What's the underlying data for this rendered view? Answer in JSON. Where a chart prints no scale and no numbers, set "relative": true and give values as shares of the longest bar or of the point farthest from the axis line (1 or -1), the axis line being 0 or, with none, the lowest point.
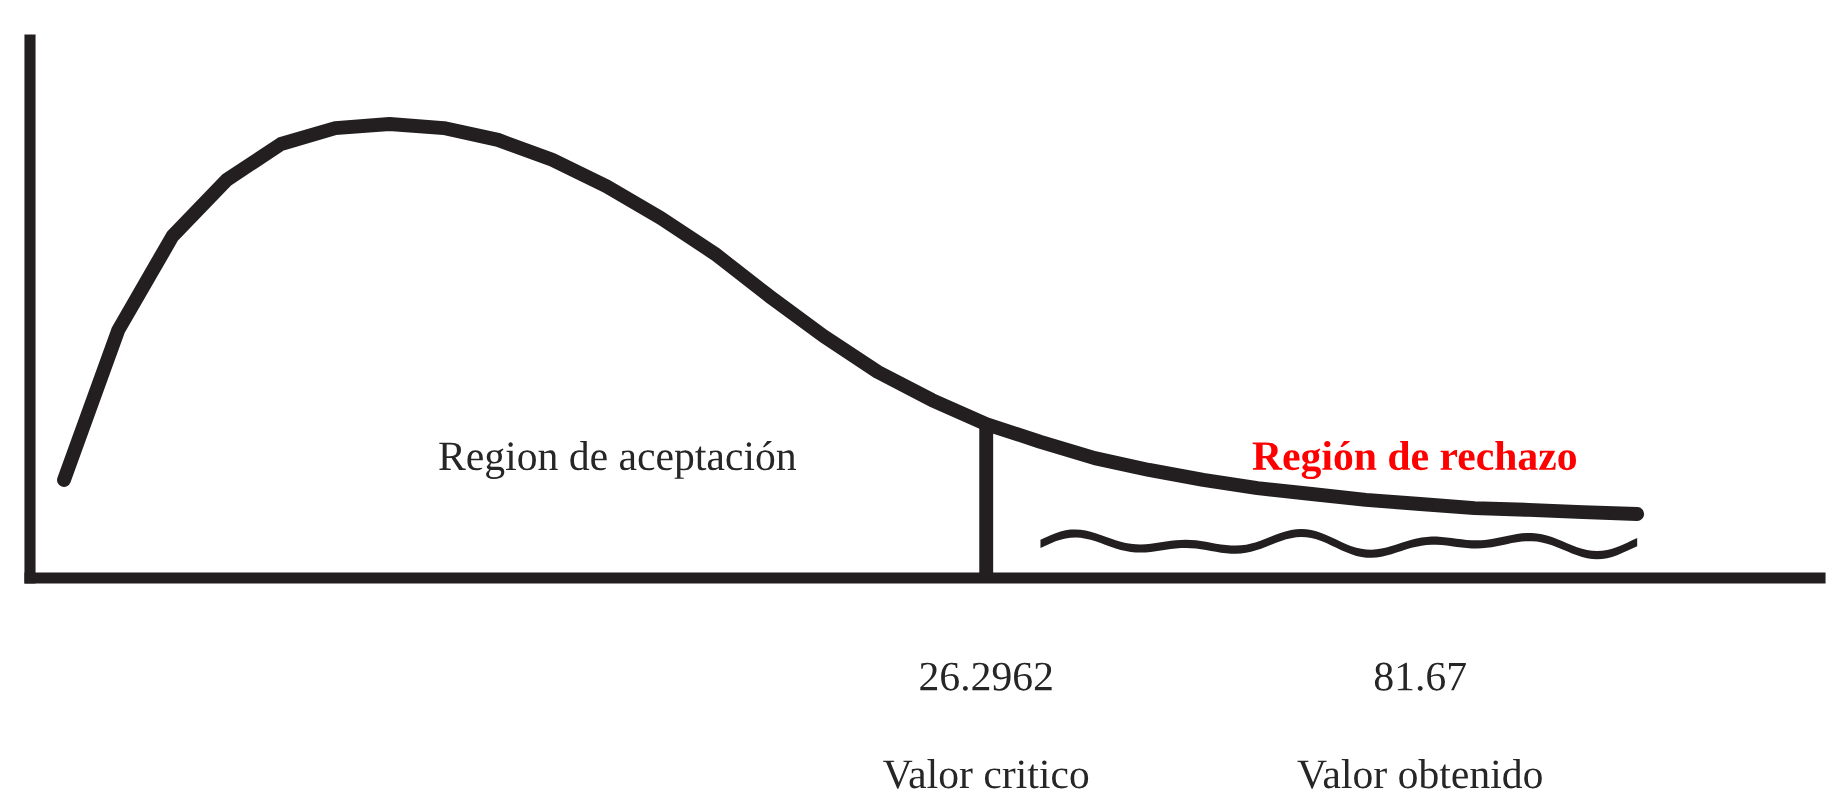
{
  "chart_data": {
    "type": "line",
    "relative": true,
    "color": "#231f20",
    "categories": [
      null,
      null,
      null,
      null,
      null,
      null,
      null,
      null,
      null,
      null,
      null,
      null,
      null,
      null,
      null,
      null,
      null,
      "26.2962",
      null,
      null,
      null,
      null,
      null,
      null,
      null,
      "81.67",
      null,
      null,
      null,
      null
    ],
    "values": [
      0.216,
      0.546,
      0.753,
      0.877,
      0.956,
      0.991,
      1.0,
      0.991,
      0.965,
      0.921,
      0.863,
      0.793,
      0.714,
      0.621,
      0.533,
      0.454,
      0.392,
      0.339,
      0.3,
      0.264,
      0.238,
      0.216,
      0.198,
      0.185,
      0.172,
      0.163,
      0.154,
      0.15,
      0.145,
      0.141
    ],
    "ref_lines": [
      {
        "axis": "x",
        "value": "26.2962",
        "color": "#231f20"
      }
    ],
    "annotations": [
      "Region de aceptación",
      "Región de rechazo",
      "Valor critico",
      "Valor obtenido"
    ],
    "grid": false,
    "legend": false,
    "marker": "none",
    "line_style": "solid"
  }
}
